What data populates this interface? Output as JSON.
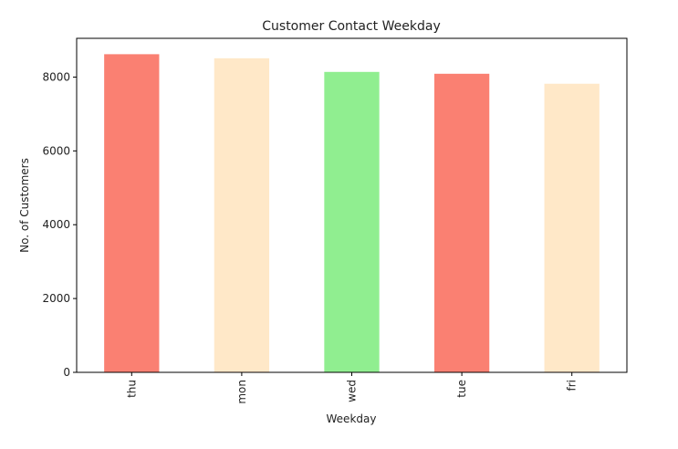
{
  "chart_data": {
    "type": "bar",
    "title": "Customer Contact Weekday",
    "xlabel": "Weekday",
    "ylabel": "No. of Customers",
    "categories": [
      "thu",
      "mon",
      "wed",
      "tue",
      "fri"
    ],
    "values": [
      8620,
      8510,
      8140,
      8090,
      7820
    ],
    "colors": [
      "#fa8072",
      "#ffe8c8",
      "#90ee90",
      "#fa8072",
      "#ffe8c8"
    ],
    "ylim": [
      0,
      9050
    ],
    "yticks": [
      0,
      2000,
      4000,
      6000,
      8000
    ],
    "ytick_labels": [
      "0",
      "2000",
      "4000",
      "6000",
      "8000"
    ],
    "grid": false,
    "legend": "none"
  }
}
